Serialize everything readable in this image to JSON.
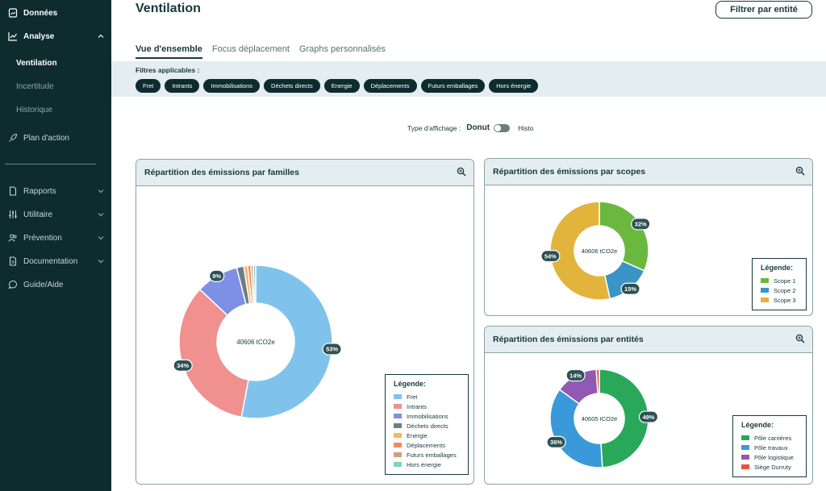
{
  "sidebar": {
    "items": [
      {
        "label": "Données",
        "icon": "file-chart-icon"
      },
      {
        "label": "Analyse",
        "icon": "chart-line-icon"
      },
      {
        "label": "Plan d'action",
        "icon": "rocket-icon"
      },
      {
        "label": "Rapports",
        "icon": "file-icon"
      },
      {
        "label": "Utilitaire",
        "icon": "sliders-icon"
      },
      {
        "label": "Prévention",
        "icon": "users-icon"
      },
      {
        "label": "Documentation",
        "icon": "document-icon"
      },
      {
        "label": "Guide/Aide",
        "icon": "chat-icon"
      }
    ],
    "analyse_sub": [
      "Ventilation",
      "Incertitude",
      "Historique"
    ]
  },
  "header": {
    "title": "Ventilation",
    "filter_button": "Filtrer par entité"
  },
  "tabs": [
    "Vue d'ensemble",
    "Focus déplacement",
    "Graphs personnalisés"
  ],
  "filters": {
    "label": "Filtres applicables :",
    "chips": [
      "Fret",
      "Intrants",
      "Immobilisations",
      "Déchets directs",
      "Energie",
      "Déplacements",
      "Futurs emballages",
      "Hors énergie"
    ]
  },
  "display_type": {
    "label": "Type d'affichage :",
    "donut": "Donut",
    "histo": "Histo"
  },
  "legend_title": "Légende:",
  "colors": {
    "sidebar_bg": "#0e2b2f",
    "header_bg": "#e4edef",
    "chip_bg": "#0e2b2f"
  },
  "chart_data": [
    {
      "type": "pie",
      "title": "Répartition des émissions par familles",
      "center_label": "40606 tCO2e",
      "categories": [
        "Fret",
        "Intrants",
        "Immobilisations",
        "Déchets directs",
        "Energie",
        "Déplacements",
        "Futurs emballages",
        "Hors énergie"
      ],
      "values": [
        53,
        34,
        9,
        1.5,
        0.8,
        0.7,
        0.5,
        0.5
      ],
      "value_labels": [
        "53%",
        "34%",
        "9%",
        "",
        "",
        "",
        "",
        ""
      ],
      "colors": [
        "#7fc3ec",
        "#f0908f",
        "#7e8fe6",
        "#6d7d86",
        "#f5b65f",
        "#ef8a5c",
        "#c9a27e",
        "#7fd2c7"
      ]
    },
    {
      "type": "pie",
      "title": "Répartition des émissions par scopes",
      "center_label": "40606 tCO2e",
      "categories": [
        "Scope 1",
        "Scope 2",
        "Scope 3"
      ],
      "values": [
        32,
        15,
        54
      ],
      "value_labels": [
        "32%",
        "15%",
        "54%"
      ],
      "colors": [
        "#6ab83e",
        "#3a94c6",
        "#e2b43c"
      ]
    },
    {
      "type": "pie",
      "title": "Répartition des émissions par entités",
      "center_label": "40605 tCO2e",
      "categories": [
        "Pôle carrières",
        "Pôle travaux",
        "Pôle logistique",
        "Siège Durruty"
      ],
      "values": [
        49,
        36,
        14,
        1
      ],
      "value_labels": [
        "49%",
        "36%",
        "14%",
        ""
      ],
      "colors": [
        "#29a85a",
        "#3a9ad9",
        "#9158b4",
        "#e8553c"
      ]
    }
  ]
}
